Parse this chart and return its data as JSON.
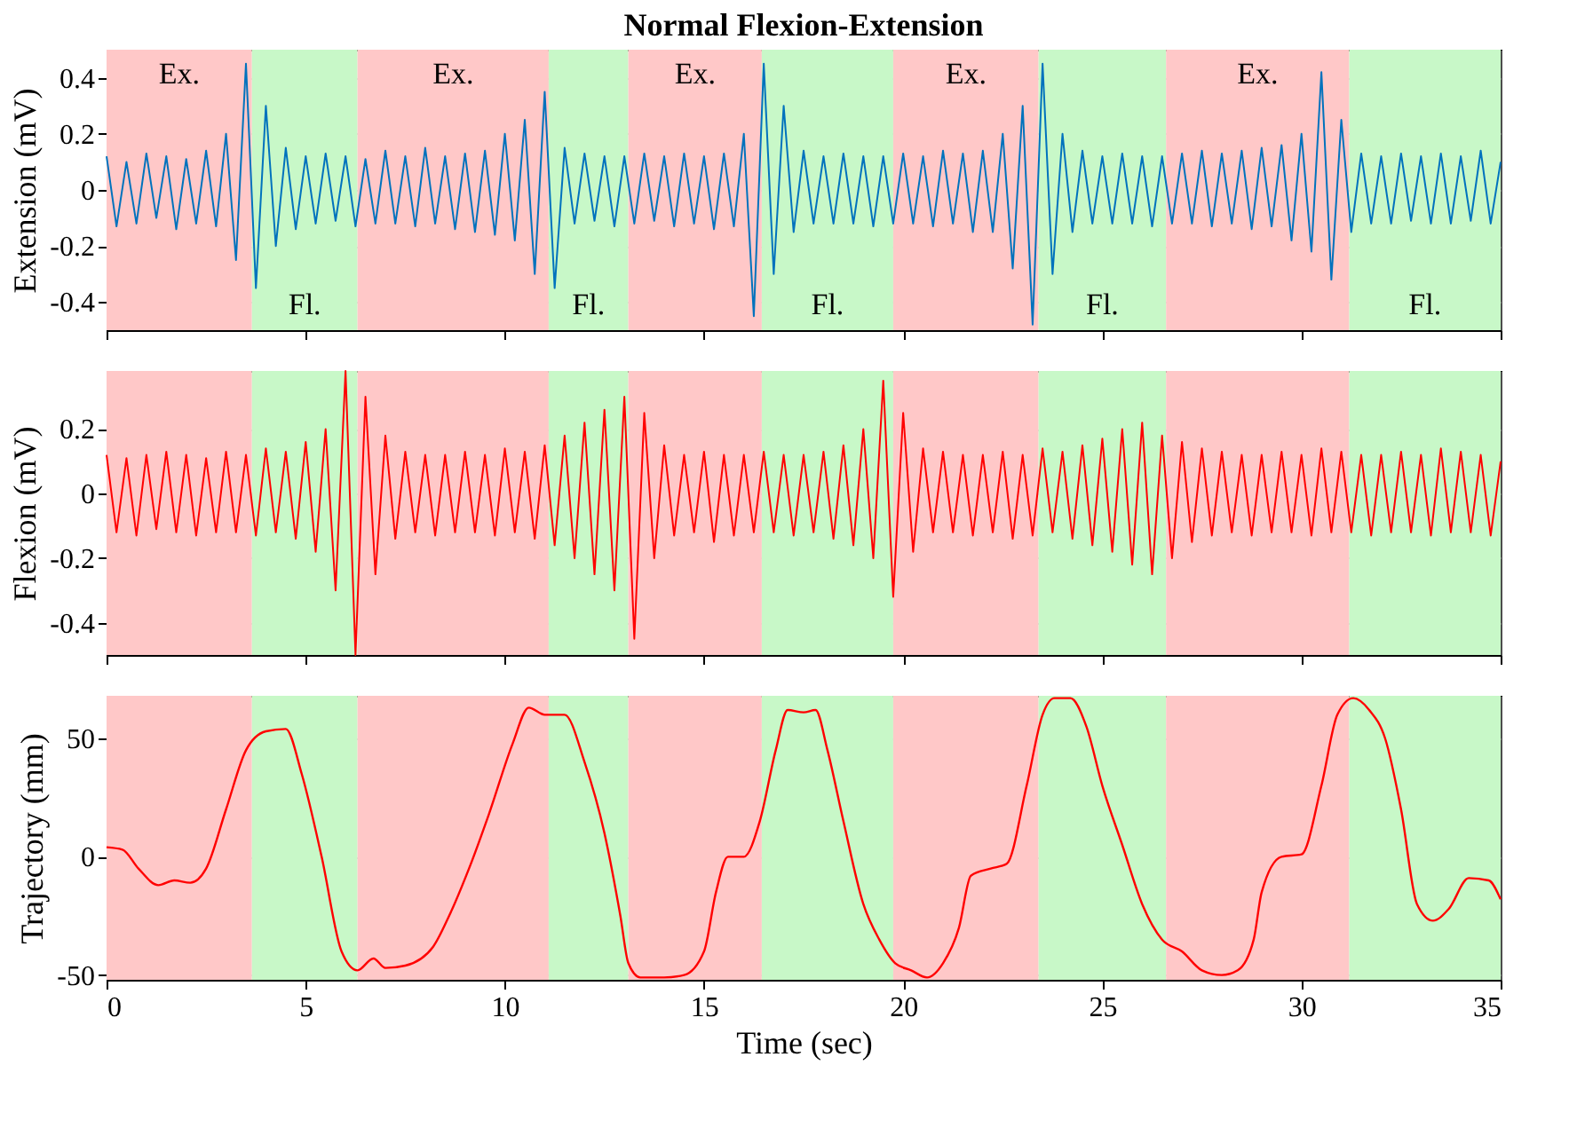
{
  "chart_data": [
    {
      "type": "line",
      "title": "Normal Flexion-Extension",
      "ylabel": "Extension (mV)",
      "xlim": [
        0,
        35
      ],
      "ylim": [
        -0.5,
        0.5
      ],
      "xticks": [
        0,
        5,
        10,
        15,
        20,
        25,
        30,
        35
      ],
      "yticks": [
        -0.4,
        -0.2,
        0,
        0.2,
        0.4
      ],
      "grid": true,
      "tick_labels": "y",
      "bands": [
        {
          "axis": "x",
          "from": 0,
          "to": 3.65,
          "label": "Ex.",
          "color": "#ffc8c8"
        },
        {
          "axis": "x",
          "from": 3.65,
          "to": 6.3,
          "label": "Fl.",
          "color": "#c8f8c8"
        },
        {
          "axis": "x",
          "from": 6.3,
          "to": 11.1,
          "label": "Ex.",
          "color": "#ffc8c8"
        },
        {
          "axis": "x",
          "from": 11.1,
          "to": 13.1,
          "label": "Fl.",
          "color": "#c8f8c8"
        },
        {
          "axis": "x",
          "from": 13.1,
          "to": 16.45,
          "label": "Ex.",
          "color": "#ffc8c8"
        },
        {
          "axis": "x",
          "from": 16.45,
          "to": 19.75,
          "label": "Fl.",
          "color": "#c8f8c8"
        },
        {
          "axis": "x",
          "from": 19.75,
          "to": 23.4,
          "label": "Ex.",
          "color": "#ffc8c8"
        },
        {
          "axis": "x",
          "from": 23.4,
          "to": 26.6,
          "label": "Fl.",
          "color": "#c8f8c8"
        },
        {
          "axis": "x",
          "from": 26.6,
          "to": 31.2,
          "label": "Ex.",
          "color": "#ffc8c8"
        },
        {
          "axis": "x",
          "from": 31.2,
          "to": 35,
          "label": "Fl.",
          "color": "#c8f8c8"
        }
      ],
      "x": [
        0,
        0.25,
        0.5,
        0.75,
        1,
        1.25,
        1.5,
        1.75,
        2,
        2.25,
        2.5,
        2.75,
        3,
        3.25,
        3.5,
        3.75,
        4,
        4.25,
        4.5,
        4.75,
        5,
        5.25,
        5.5,
        5.75,
        6,
        6.25,
        6.5,
        6.75,
        7,
        7.25,
        7.5,
        7.75,
        8,
        8.25,
        8.5,
        8.75,
        9,
        9.25,
        9.5,
        9.75,
        10,
        10.25,
        10.5,
        10.75,
        11,
        11.25,
        11.5,
        11.75,
        12,
        12.25,
        12.5,
        12.75,
        13,
        13.25,
        13.5,
        13.75,
        14,
        14.25,
        14.5,
        14.75,
        15,
        15.25,
        15.5,
        15.75,
        16,
        16.25,
        16.5,
        16.75,
        17,
        17.25,
        17.5,
        17.75,
        18,
        18.25,
        18.5,
        18.75,
        19,
        19.25,
        19.5,
        19.75,
        20,
        20.25,
        20.5,
        20.75,
        21,
        21.25,
        21.5,
        21.75,
        22,
        22.25,
        22.5,
        22.75,
        23,
        23.25,
        23.5,
        23.75,
        24,
        24.25,
        24.5,
        24.75,
        25,
        25.25,
        25.5,
        25.75,
        26,
        26.25,
        26.5,
        26.75,
        27,
        27.25,
        27.5,
        27.75,
        28,
        28.25,
        28.5,
        28.75,
        29,
        29.25,
        29.5,
        29.75,
        30,
        30.25,
        30.5,
        30.75,
        31,
        31.25,
        31.5,
        31.75,
        32,
        32.25,
        32.5,
        32.75,
        33,
        33.25,
        33.5,
        33.75,
        34,
        34.25,
        34.5,
        34.75,
        35
      ],
      "series": [
        {
          "color": "#0072bd",
          "values": [
            0.12,
            -0.13,
            0.1,
            -0.12,
            0.13,
            -0.1,
            0.12,
            -0.14,
            0.11,
            -0.12,
            0.14,
            -0.13,
            0.2,
            -0.25,
            0.45,
            -0.35,
            0.3,
            -0.2,
            0.15,
            -0.14,
            0.12,
            -0.12,
            0.13,
            -0.11,
            0.12,
            -0.13,
            0.11,
            -0.12,
            0.14,
            -0.12,
            0.12,
            -0.13,
            0.15,
            -0.12,
            0.12,
            -0.14,
            0.13,
            -0.15,
            0.14,
            -0.16,
            0.2,
            -0.18,
            0.25,
            -0.3,
            0.35,
            -0.35,
            0.15,
            -0.12,
            0.13,
            -0.11,
            0.12,
            -0.13,
            0.12,
            -0.12,
            0.13,
            -0.11,
            0.12,
            -0.13,
            0.13,
            -0.12,
            0.12,
            -0.14,
            0.13,
            -0.13,
            0.2,
            -0.45,
            0.45,
            -0.3,
            0.3,
            -0.15,
            0.14,
            -0.12,
            0.12,
            -0.12,
            0.13,
            -0.12,
            0.12,
            -0.13,
            0.12,
            -0.12,
            0.13,
            -0.12,
            0.12,
            -0.13,
            0.14,
            -0.12,
            0.13,
            -0.15,
            0.14,
            -0.15,
            0.2,
            -0.28,
            0.3,
            -0.48,
            0.45,
            -0.3,
            0.2,
            -0.15,
            0.14,
            -0.12,
            0.12,
            -0.12,
            0.13,
            -0.12,
            0.12,
            -0.13,
            0.12,
            -0.12,
            0.13,
            -0.12,
            0.14,
            -0.13,
            0.13,
            -0.12,
            0.14,
            -0.14,
            0.15,
            -0.13,
            0.16,
            -0.18,
            0.2,
            -0.22,
            0.42,
            -0.32,
            0.25,
            -0.15,
            0.13,
            -0.12,
            0.12,
            -0.12,
            0.13,
            -0.11,
            0.12,
            -0.12,
            0.13,
            -0.12,
            0.12,
            -0.11,
            0.14,
            -0.12,
            0.1
          ]
        }
      ]
    },
    {
      "type": "line",
      "ylabel": "Flexion (mV)",
      "xlim": [
        0,
        35
      ],
      "ylim": [
        -0.5,
        0.38
      ],
      "xticks": [
        0,
        5,
        10,
        15,
        20,
        25,
        30,
        35
      ],
      "yticks": [
        -0.4,
        -0.2,
        0,
        0.2
      ],
      "grid": true,
      "tick_labels": "y",
      "bands": [
        {
          "axis": "x",
          "from": 0,
          "to": 3.65,
          "color": "#ffc8c8"
        },
        {
          "axis": "x",
          "from": 3.65,
          "to": 6.3,
          "color": "#c8f8c8"
        },
        {
          "axis": "x",
          "from": 6.3,
          "to": 11.1,
          "color": "#ffc8c8"
        },
        {
          "axis": "x",
          "from": 11.1,
          "to": 13.1,
          "color": "#c8f8c8"
        },
        {
          "axis": "x",
          "from": 13.1,
          "to": 16.45,
          "color": "#ffc8c8"
        },
        {
          "axis": "x",
          "from": 16.45,
          "to": 19.75,
          "color": "#c8f8c8"
        },
        {
          "axis": "x",
          "from": 19.75,
          "to": 23.4,
          "color": "#ffc8c8"
        },
        {
          "axis": "x",
          "from": 23.4,
          "to": 26.6,
          "color": "#c8f8c8"
        },
        {
          "axis": "x",
          "from": 26.6,
          "to": 31.2,
          "color": "#ffc8c8"
        },
        {
          "axis": "x",
          "from": 31.2,
          "to": 35,
          "color": "#c8f8c8"
        }
      ],
      "x": [
        0,
        0.25,
        0.5,
        0.75,
        1,
        1.25,
        1.5,
        1.75,
        2,
        2.25,
        2.5,
        2.75,
        3,
        3.25,
        3.5,
        3.75,
        4,
        4.25,
        4.5,
        4.75,
        5,
        5.25,
        5.5,
        5.75,
        6,
        6.25,
        6.5,
        6.75,
        7,
        7.25,
        7.5,
        7.75,
        8,
        8.25,
        8.5,
        8.75,
        9,
        9.25,
        9.5,
        9.75,
        10,
        10.25,
        10.5,
        10.75,
        11,
        11.25,
        11.5,
        11.75,
        12,
        12.25,
        12.5,
        12.75,
        13,
        13.25,
        13.5,
        13.75,
        14,
        14.25,
        14.5,
        14.75,
        15,
        15.25,
        15.5,
        15.75,
        16,
        16.25,
        16.5,
        16.75,
        17,
        17.25,
        17.5,
        17.75,
        18,
        18.25,
        18.5,
        18.75,
        19,
        19.25,
        19.5,
        19.75,
        20,
        20.25,
        20.5,
        20.75,
        21,
        21.25,
        21.5,
        21.75,
        22,
        22.25,
        22.5,
        22.75,
        23,
        23.25,
        23.5,
        23.75,
        24,
        24.25,
        24.5,
        24.75,
        25,
        25.25,
        25.5,
        25.75,
        26,
        26.25,
        26.5,
        26.75,
        27,
        27.25,
        27.5,
        27.75,
        28,
        28.25,
        28.5,
        28.75,
        29,
        29.25,
        29.5,
        29.75,
        30,
        30.25,
        30.5,
        30.75,
        31,
        31.25,
        31.5,
        31.75,
        32,
        32.25,
        32.5,
        32.75,
        33,
        33.25,
        33.5,
        33.75,
        34,
        34.25,
        34.5,
        34.75,
        35
      ],
      "series": [
        {
          "color": "#ff0000",
          "values": [
            0.12,
            -0.12,
            0.11,
            -0.13,
            0.12,
            -0.11,
            0.13,
            -0.12,
            0.12,
            -0.13,
            0.11,
            -0.12,
            0.13,
            -0.12,
            0.12,
            -0.13,
            0.14,
            -0.12,
            0.13,
            -0.14,
            0.16,
            -0.18,
            0.2,
            -0.3,
            0.38,
            -0.5,
            0.3,
            -0.25,
            0.18,
            -0.14,
            0.13,
            -0.12,
            0.12,
            -0.13,
            0.12,
            -0.12,
            0.13,
            -0.12,
            0.12,
            -0.13,
            0.14,
            -0.12,
            0.13,
            -0.14,
            0.15,
            -0.16,
            0.18,
            -0.2,
            0.22,
            -0.25,
            0.26,
            -0.3,
            0.3,
            -0.45,
            0.25,
            -0.2,
            0.15,
            -0.13,
            0.12,
            -0.12,
            0.13,
            -0.15,
            0.12,
            -0.13,
            0.12,
            -0.12,
            0.13,
            -0.12,
            0.12,
            -0.13,
            0.12,
            -0.12,
            0.13,
            -0.14,
            0.15,
            -0.16,
            0.2,
            -0.2,
            0.35,
            -0.32,
            0.25,
            -0.18,
            0.14,
            -0.12,
            0.13,
            -0.12,
            0.12,
            -0.13,
            0.12,
            -0.12,
            0.13,
            -0.14,
            0.12,
            -0.13,
            0.14,
            -0.12,
            0.13,
            -0.14,
            0.15,
            -0.16,
            0.17,
            -0.18,
            0.2,
            -0.22,
            0.22,
            -0.25,
            0.18,
            -0.2,
            0.16,
            -0.15,
            0.14,
            -0.13,
            0.13,
            -0.12,
            0.12,
            -0.13,
            0.12,
            -0.12,
            0.13,
            -0.12,
            0.12,
            -0.13,
            0.14,
            -0.12,
            0.13,
            -0.12,
            0.12,
            -0.13,
            0.12,
            -0.12,
            0.13,
            -0.12,
            0.12,
            -0.13,
            0.14,
            -0.12,
            0.13,
            -0.12,
            0.12,
            -0.13,
            0.1
          ]
        }
      ]
    },
    {
      "type": "line",
      "ylabel": "Trajectory (mm)",
      "xlabel": "Time (sec)",
      "xlim": [
        0,
        35
      ],
      "ylim": [
        -52,
        68
      ],
      "xticks": [
        0,
        5,
        10,
        15,
        20,
        25,
        30,
        35
      ],
      "yticks": [
        -50,
        0,
        50
      ],
      "grid": true,
      "bands": [
        {
          "axis": "x",
          "from": 0,
          "to": 3.65,
          "color": "#ffc8c8"
        },
        {
          "axis": "x",
          "from": 3.65,
          "to": 6.3,
          "color": "#c8f8c8"
        },
        {
          "axis": "x",
          "from": 6.3,
          "to": 11.1,
          "color": "#ffc8c8"
        },
        {
          "axis": "x",
          "from": 11.1,
          "to": 13.1,
          "color": "#c8f8c8"
        },
        {
          "axis": "x",
          "from": 13.1,
          "to": 16.45,
          "color": "#ffc8c8"
        },
        {
          "axis": "x",
          "from": 16.45,
          "to": 19.75,
          "color": "#c8f8c8"
        },
        {
          "axis": "x",
          "from": 19.75,
          "to": 23.4,
          "color": "#ffc8c8"
        },
        {
          "axis": "x",
          "from": 23.4,
          "to": 26.6,
          "color": "#c8f8c8"
        },
        {
          "axis": "x",
          "from": 26.6,
          "to": 31.2,
          "color": "#ffc8c8"
        },
        {
          "axis": "x",
          "from": 31.2,
          "to": 35,
          "color": "#c8f8c8"
        }
      ],
      "x": [
        0,
        0.4,
        0.8,
        1.3,
        1.7,
        2.1,
        2.5,
        3.0,
        3.5,
        4.0,
        4.5,
        4.9,
        5.4,
        5.9,
        6.3,
        6.7,
        7.0,
        7.5,
        8.2,
        8.6,
        9.1,
        9.6,
        10.2,
        10.6,
        11.0,
        11.5,
        12.0,
        12.5,
        12.9,
        13.1,
        13.4,
        14.0,
        14.5,
        15.0,
        15.3,
        15.6,
        16.0,
        16.4,
        16.8,
        17.1,
        17.5,
        17.8,
        18.1,
        18.5,
        19.0,
        19.4,
        19.8,
        20.2,
        20.6,
        21.0,
        21.4,
        21.7,
        22.2,
        22.6,
        23.1,
        23.5,
        23.8,
        24.2,
        24.6,
        25.0,
        25.5,
        26.0,
        26.5,
        27.0,
        27.5,
        28.0,
        28.4,
        28.8,
        29.0,
        29.5,
        30.0,
        30.5,
        30.9,
        31.3,
        31.7,
        32.1,
        32.5,
        32.9,
        33.3,
        33.7,
        34.2,
        34.7,
        35.0
      ],
      "series": [
        {
          "color": "#ff0000",
          "values": [
            4,
            3,
            -5,
            -12,
            -10,
            -11,
            -5,
            20,
            45,
            53,
            54,
            35,
            0,
            -40,
            -48,
            -43,
            -47,
            -46,
            -38,
            -25,
            -5,
            18,
            48,
            63,
            60,
            60,
            40,
            10,
            -25,
            -45,
            -51,
            -51,
            -50,
            -40,
            -15,
            0,
            0,
            15,
            45,
            62,
            61,
            62,
            45,
            15,
            -20,
            -35,
            -45,
            -48,
            -51,
            -45,
            -30,
            -8,
            -5,
            -3,
            30,
            60,
            67,
            67,
            55,
            30,
            5,
            -20,
            -35,
            -40,
            -48,
            -50,
            -48,
            -35,
            -15,
            0,
            1,
            30,
            60,
            67,
            62,
            50,
            20,
            -20,
            -27,
            -22,
            -9,
            -10,
            -18
          ]
        }
      ]
    }
  ]
}
